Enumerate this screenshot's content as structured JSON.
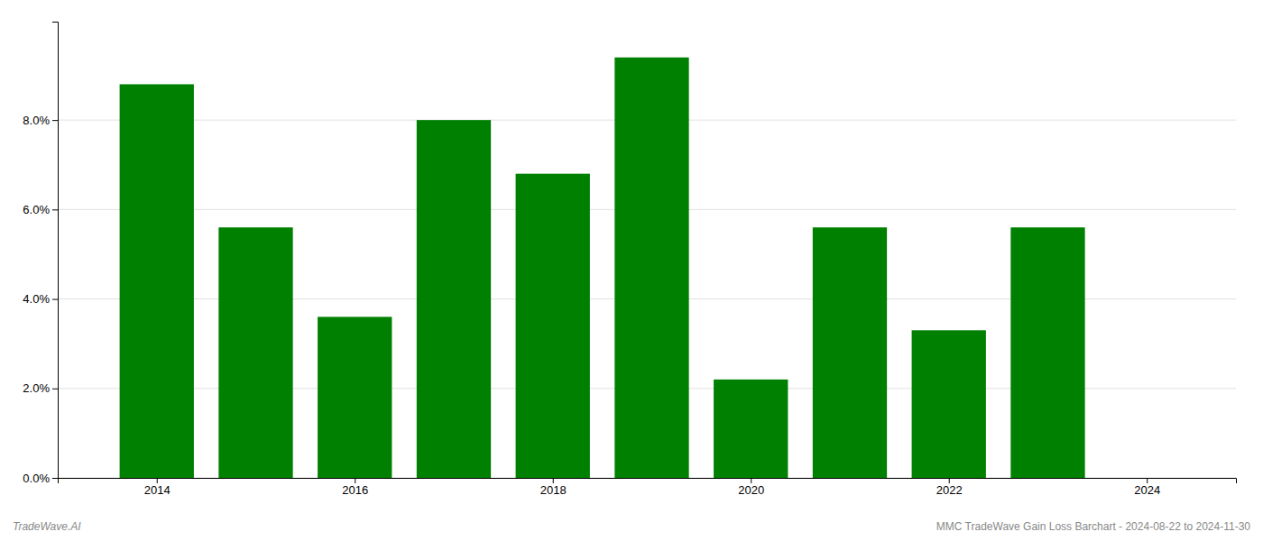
{
  "chart_data": {
    "type": "bar",
    "x": [
      2014,
      2015,
      2016,
      2017,
      2018,
      2019,
      2020,
      2021,
      2022,
      2023
    ],
    "values": [
      0.088,
      0.056,
      0.036,
      0.08,
      0.068,
      0.094,
      0.022,
      0.056,
      0.033,
      0.056
    ],
    "color": "#008000",
    "xlim": [
      2013.0,
      2024.9
    ],
    "xticks": [
      2014,
      2016,
      2018,
      2020,
      2022,
      2024
    ],
    "ylim": [
      0,
      0.102
    ],
    "yticks": [
      {
        "value": 0.0,
        "label": "0.0%"
      },
      {
        "value": 0.02,
        "label": "2.0%"
      },
      {
        "value": 0.04,
        "label": "4.0%"
      },
      {
        "value": 0.06,
        "label": "6.0%"
      },
      {
        "value": 0.08,
        "label": "8.0%"
      }
    ],
    "grid": true,
    "annotations": [
      "TradeWave.AI",
      "MMC TradeWave Gain Loss Barchart - 2024-08-22 to 2024-11-30"
    ]
  }
}
